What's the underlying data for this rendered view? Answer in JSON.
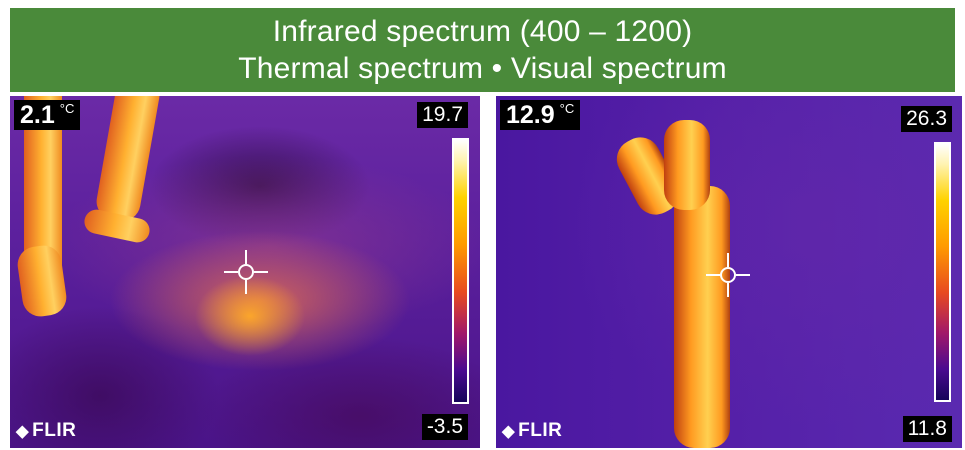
{
  "banner": {
    "line1": "Infrared spectrum (400 – 1200)",
    "line2": "Thermal spectrum • Visual spectrum",
    "background_color": "#4a8a3a"
  },
  "panels": [
    {
      "readout_value": "2.1",
      "readout_unit": "°C",
      "scale_max": "19.7",
      "scale_min": "-3.5",
      "logo_text": "FLIR",
      "logo_icon": "flir-diamond-icon"
    },
    {
      "readout_value": "12.9",
      "readout_unit": "°C",
      "scale_max": "26.3",
      "scale_min": "11.8",
      "logo_text": "FLIR",
      "logo_icon": "flir-diamond-icon"
    }
  ],
  "palette": [
    "#16045a",
    "#4a0a90",
    "#a0186a",
    "#e84a20",
    "#ff9a00",
    "#ffd200",
    "#ffffff"
  ]
}
